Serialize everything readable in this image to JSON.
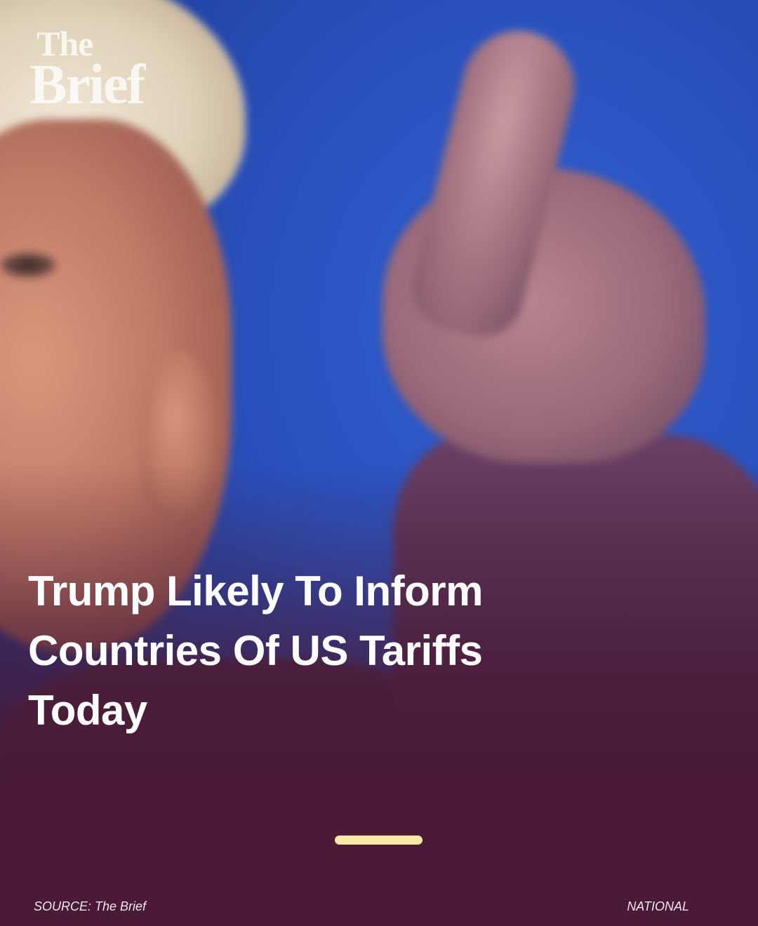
{
  "brand": {
    "logo_line1": "The",
    "logo_line2": "Brief"
  },
  "article": {
    "headline": "Trump Likely To Inform Countries Of US Tariffs Today",
    "source_label": "SOURCE: The Brief",
    "category": "NATIONAL"
  },
  "carousel": {
    "active_color": "#f7e8a8"
  },
  "colors": {
    "background": "#4a1a36",
    "headline": "#ffffff",
    "photo_backdrop": "#2a52bf"
  },
  "icons": {
    "logo": "the-brief-logo"
  }
}
